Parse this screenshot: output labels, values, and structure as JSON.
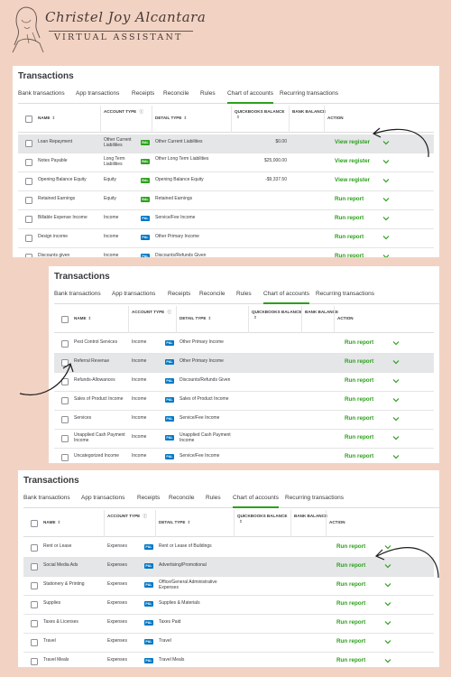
{
  "brand": {
    "script_name": "Christel Joy Alcantara",
    "subtitle": "VIRTUAL ASSISTANT"
  },
  "tab_labels": [
    "Bank transactions",
    "App transactions",
    "Receipts",
    "Reconcile",
    "Rules",
    "Chart of accounts",
    "Recurring transactions"
  ],
  "column_headers": {
    "name": "NAME",
    "account_type": "ACCOUNT TYPE",
    "detail_type": "DETAIL TYPE",
    "qb_balance": "QUICKBOOKS BALANCE",
    "bank_balance": "BANK BALANCE",
    "action": "ACTION"
  },
  "colors": {
    "background": "#f2d3c3",
    "action_green": "#2ca01c",
    "pnl_blue": "#0077c5",
    "bal_green": "#2ca01c",
    "highlight_row": "#e5e6e8"
  },
  "panels": [
    {
      "title": "Transactions",
      "rows": [
        {
          "name": "Loan Repayment",
          "type": "Other Current Liabilities",
          "badge": "BAL",
          "detail": "Other Current Liabilities",
          "qb_balance": "$0.00",
          "action": "View register",
          "highlighted": true
        },
        {
          "name": "Notes Payable",
          "type": "Long Term Liabilities",
          "badge": "BAL",
          "detail": "Other Long Term Liabilities",
          "qb_balance": "$25,000.00",
          "action": "View register",
          "highlighted": false
        },
        {
          "name": "Opening Balance Equity",
          "type": "Equity",
          "badge": "BAL",
          "detail": "Opening Balance Equity",
          "qb_balance": "-$9,337.50",
          "action": "View register",
          "highlighted": false
        },
        {
          "name": "Retained Earnings",
          "type": "Equity",
          "badge": "BAL",
          "detail": "Retained Earnings",
          "qb_balance": "",
          "action": "Run report",
          "highlighted": false
        },
        {
          "name": "Billable Expense Income",
          "type": "Income",
          "badge": "P&L",
          "detail": "Service/Fee Income",
          "qb_balance": "",
          "action": "Run report",
          "highlighted": false
        },
        {
          "name": "Design income",
          "type": "Income",
          "badge": "P&L",
          "detail": "Other Primary Income",
          "qb_balance": "",
          "action": "Run report",
          "highlighted": false
        },
        {
          "name": "Discounts given",
          "type": "Income",
          "badge": "P&L",
          "detail": "Discounts/Refunds Given",
          "qb_balance": "",
          "action": "Run report",
          "highlighted": false
        }
      ]
    },
    {
      "title": "Transactions",
      "rows": [
        {
          "name": "Pest Control Services",
          "type": "Income",
          "badge": "P&L",
          "detail": "Other Primary Income",
          "qb_balance": "",
          "action": "Run report",
          "highlighted": false
        },
        {
          "name": "Referral Revenue",
          "type": "Income",
          "badge": "P&L",
          "detail": "Other Primary Income",
          "qb_balance": "",
          "action": "Run report",
          "highlighted": true
        },
        {
          "name": "Refunds-Allowances",
          "type": "Income",
          "badge": "P&L",
          "detail": "Discounts/Refunds Given",
          "qb_balance": "",
          "action": "Run report",
          "highlighted": false
        },
        {
          "name": "Sales of Product Income",
          "type": "Income",
          "badge": "P&L",
          "detail": "Sales of Product Income",
          "qb_balance": "",
          "action": "Run report",
          "highlighted": false
        },
        {
          "name": "Services",
          "type": "Income",
          "badge": "P&L",
          "detail": "Service/Fee Income",
          "qb_balance": "",
          "action": "Run report",
          "highlighted": false
        },
        {
          "name": "Unapplied Cash Payment Income",
          "type": "Income",
          "badge": "P&L",
          "detail": "Unapplied Cash Payment Income",
          "qb_balance": "",
          "action": "Run report",
          "highlighted": false
        },
        {
          "name": "Uncategorized Income",
          "type": "Income",
          "badge": "P&L",
          "detail": "Service/Fee Income",
          "qb_balance": "",
          "action": "Run report",
          "highlighted": false
        }
      ]
    },
    {
      "title": "Transactions",
      "rows": [
        {
          "name": "Rent or Lease",
          "type": "Expenses",
          "badge": "P&L",
          "detail": "Rent or Lease of Buildings",
          "qb_balance": "",
          "action": "Run report",
          "highlighted": false
        },
        {
          "name": "Social Media Ads",
          "type": "Expenses",
          "badge": "P&L",
          "detail": "Advertising/Promotional",
          "qb_balance": "",
          "action": "Run report",
          "highlighted": true
        },
        {
          "name": "Stationery & Printing",
          "type": "Expenses",
          "badge": "P&L",
          "detail": "Office/General Administrative Expenses",
          "qb_balance": "",
          "action": "Run report",
          "highlighted": false
        },
        {
          "name": "Supplies",
          "type": "Expenses",
          "badge": "P&L",
          "detail": "Supplies & Materials",
          "qb_balance": "",
          "action": "Run report",
          "highlighted": false
        },
        {
          "name": "Taxes & Licenses",
          "type": "Expenses",
          "badge": "P&L",
          "detail": "Taxes Paid",
          "qb_balance": "",
          "action": "Run report",
          "highlighted": false
        },
        {
          "name": "Travel",
          "type": "Expenses",
          "badge": "P&L",
          "detail": "Travel",
          "qb_balance": "",
          "action": "Run report",
          "highlighted": false
        },
        {
          "name": "Travel Meals",
          "type": "Expenses",
          "badge": "P&L",
          "detail": "Travel Meals",
          "qb_balance": "",
          "action": "Run report",
          "highlighted": false
        }
      ]
    }
  ]
}
